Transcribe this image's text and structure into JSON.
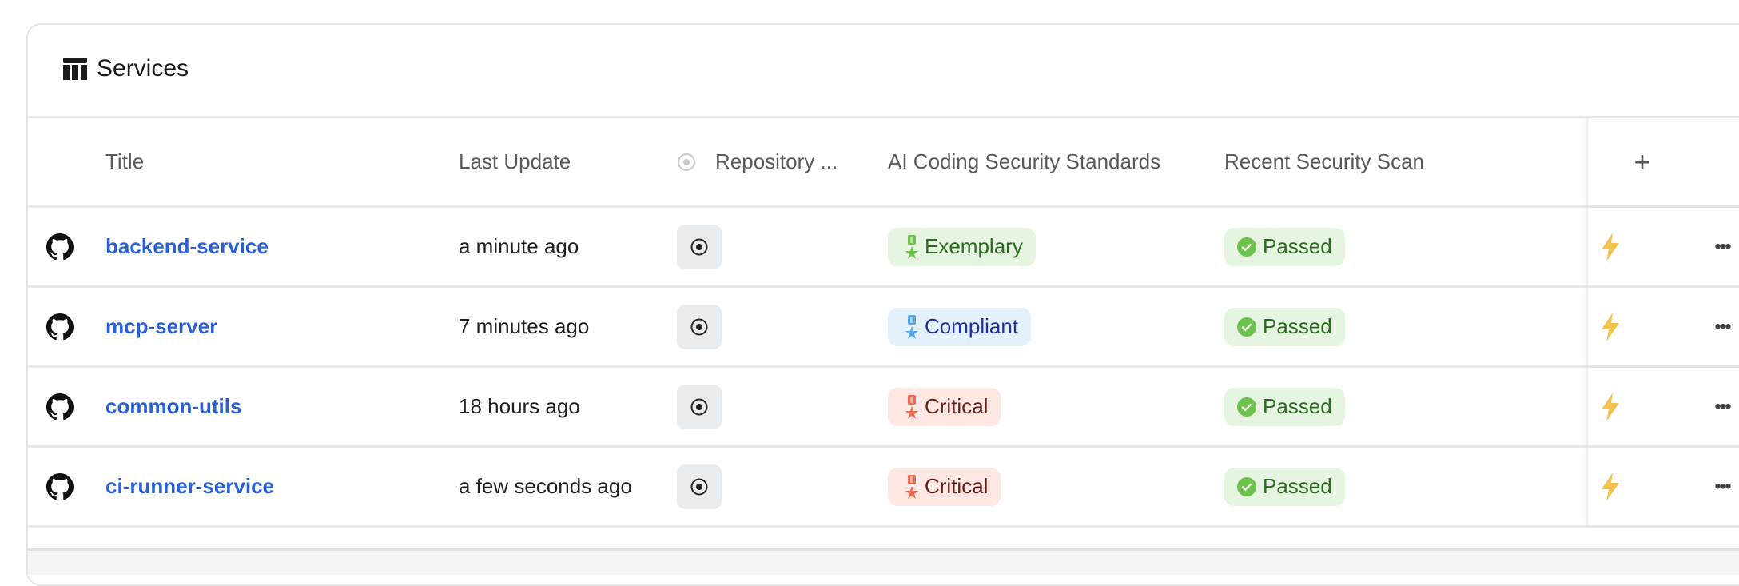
{
  "header": {
    "title": "Services",
    "icon": "table-icon"
  },
  "columns": {
    "title": "Title",
    "last_update": "Last Update",
    "repository": "Repository ...",
    "ai_standards": "AI Coding Security Standards",
    "scan": "Recent Security Scan",
    "add": "+"
  },
  "rows": [
    {
      "title": "backend-service",
      "last_update": "a minute ago",
      "ai_standard": "Exemplary",
      "ai_color": "green",
      "scan": "Passed"
    },
    {
      "title": "mcp-server",
      "last_update": "7 minutes ago",
      "ai_standard": "Compliant",
      "ai_color": "blue",
      "scan": "Passed"
    },
    {
      "title": "common-utils",
      "last_update": "18 hours ago",
      "ai_standard": "Critical",
      "ai_color": "red",
      "scan": "Passed"
    },
    {
      "title": "ci-runner-service",
      "last_update": "a few seconds ago",
      "ai_standard": "Critical",
      "ai_color": "red",
      "scan": "Passed"
    }
  ],
  "colors": {
    "link": "#2a5fd6",
    "green": "#6cc24a",
    "blue": "#5aa6ee",
    "red": "#ee6a50",
    "bolt": "#f2c14e"
  },
  "actions": {
    "more": "•••"
  }
}
